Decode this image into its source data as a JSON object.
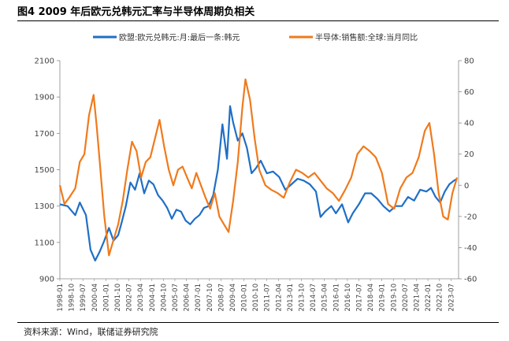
{
  "figure": {
    "title": "图4  2009 年后欧元兑韩元汇率与半导体周期负相关",
    "source": "资料来源：Wind，联储证券研究院"
  },
  "chart_data": {
    "type": "line",
    "title": "",
    "y_left": {
      "ylim": [
        900,
        2100
      ],
      "ticks": [
        900,
        1100,
        1300,
        1500,
        1700,
        1900,
        2100
      ]
    },
    "y_right": {
      "ylim": [
        -60,
        80
      ],
      "ticks": [
        -60,
        -40,
        -20,
        0,
        20,
        40,
        60,
        80
      ]
    },
    "x_ticks": [
      "1998-01",
      "1998-10",
      "1999-07",
      "2000-04",
      "2001-01",
      "2001-10",
      "2002-07",
      "2003-04",
      "2004-01",
      "2004-10",
      "2005-07",
      "2006-04",
      "2007-01",
      "2007-10",
      "2008-07",
      "2009-04",
      "2010-01",
      "2010-10",
      "2011-07",
      "2012-04",
      "2013-01",
      "2013-10",
      "2014-07",
      "2015-04",
      "2016-01",
      "2016-10",
      "2017-07",
      "2018-04",
      "2019-01",
      "2019-10",
      "2020-07",
      "2021-04",
      "2022-01",
      "2022-10",
      "2023-07"
    ],
    "grid": false,
    "legend": "top",
    "series": [
      {
        "name": "欧盟:欧元兑韩元:月:最后一条:韩元",
        "axis": "left",
        "color": "#1f6fc6",
        "x": [
          1998.0,
          1998.5,
          1999.0,
          1999.3,
          1999.7,
          2000.0,
          2000.3,
          2000.6,
          2000.9,
          2001.2,
          2001.5,
          2001.8,
          2002.0,
          2002.3,
          2002.6,
          2002.9,
          2003.2,
          2003.5,
          2003.8,
          2004.1,
          2004.4,
          2004.7,
          2005.0,
          2005.3,
          2005.6,
          2005.9,
          2006.2,
          2006.5,
          2006.8,
          2007.1,
          2007.4,
          2007.7,
          2008.0,
          2008.3,
          2008.6,
          2008.9,
          2009.1,
          2009.3,
          2009.6,
          2009.9,
          2010.2,
          2010.5,
          2010.8,
          2011.1,
          2011.5,
          2011.9,
          2012.3,
          2012.7,
          2013.1,
          2013.5,
          2013.9,
          2014.3,
          2014.7,
          2015.0,
          2015.3,
          2015.7,
          2016.0,
          2016.4,
          2016.8,
          2017.1,
          2017.5,
          2017.9,
          2018.3,
          2018.7,
          2019.1,
          2019.5,
          2019.9,
          2020.3,
          2020.7,
          2021.1,
          2021.5,
          2021.9,
          2022.2,
          2022.5,
          2022.8,
          2023.1,
          2023.4,
          2023.7,
          2023.9
        ],
        "values": [
          1310,
          1300,
          1250,
          1320,
          1250,
          1060,
          1000,
          1050,
          1110,
          1180,
          1110,
          1140,
          1200,
          1300,
          1430,
          1390,
          1480,
          1370,
          1440,
          1420,
          1360,
          1330,
          1290,
          1230,
          1280,
          1270,
          1220,
          1200,
          1230,
          1250,
          1290,
          1300,
          1360,
          1500,
          1750,
          1560,
          1850,
          1760,
          1660,
          1700,
          1620,
          1480,
          1510,
          1550,
          1480,
          1490,
          1460,
          1390,
          1420,
          1450,
          1440,
          1420,
          1380,
          1240,
          1270,
          1300,
          1260,
          1310,
          1210,
          1260,
          1310,
          1370,
          1370,
          1340,
          1300,
          1270,
          1300,
          1300,
          1350,
          1330,
          1390,
          1380,
          1400,
          1350,
          1320,
          1380,
          1420,
          1440,
          1450
        ]
      },
      {
        "name": "半导体:销售额:全球:当月同比",
        "axis": "right",
        "color": "#f07a1c",
        "x": [
          1998.0,
          1998.3,
          1998.6,
          1999.0,
          1999.3,
          1999.6,
          1999.9,
          2000.2,
          2000.4,
          2000.6,
          2000.9,
          2001.2,
          2001.5,
          2001.8,
          2002.1,
          2002.4,
          2002.7,
          2003.0,
          2003.3,
          2003.6,
          2003.9,
          2004.2,
          2004.5,
          2004.8,
          2005.1,
          2005.4,
          2005.7,
          2006.0,
          2006.3,
          2006.6,
          2006.9,
          2007.2,
          2007.5,
          2007.8,
          2008.1,
          2008.4,
          2008.7,
          2009.0,
          2009.3,
          2009.6,
          2009.9,
          2010.1,
          2010.4,
          2010.7,
          2011.0,
          2011.4,
          2011.8,
          2012.2,
          2012.6,
          2013.0,
          2013.4,
          2013.8,
          2014.2,
          2014.6,
          2015.0,
          2015.4,
          2015.8,
          2016.2,
          2016.6,
          2017.0,
          2017.4,
          2017.8,
          2018.2,
          2018.6,
          2019.0,
          2019.4,
          2019.8,
          2020.2,
          2020.6,
          2021.0,
          2021.4,
          2021.8,
          2022.1,
          2022.4,
          2022.7,
          2023.0,
          2023.3,
          2023.6,
          2023.9
        ],
        "values": [
          0,
          -12,
          -8,
          -2,
          15,
          20,
          45,
          58,
          38,
          15,
          -20,
          -45,
          -35,
          -25,
          -10,
          10,
          28,
          22,
          5,
          15,
          18,
          30,
          42,
          25,
          10,
          0,
          10,
          12,
          5,
          -2,
          8,
          0,
          -8,
          -15,
          -5,
          -20,
          -25,
          -30,
          -10,
          15,
          50,
          68,
          55,
          30,
          10,
          0,
          -3,
          -5,
          -8,
          2,
          10,
          8,
          5,
          8,
          3,
          -2,
          -5,
          -10,
          -3,
          5,
          20,
          25,
          22,
          18,
          8,
          -12,
          -15,
          -2,
          5,
          8,
          18,
          35,
          40,
          20,
          -5,
          -20,
          -22,
          -5,
          5
        ]
      }
    ]
  }
}
